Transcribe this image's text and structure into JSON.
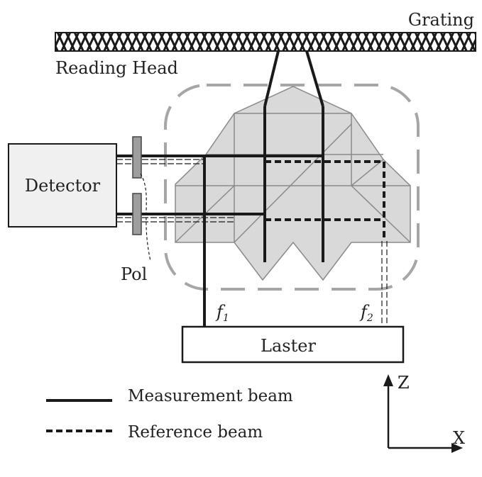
{
  "labels": {
    "grating": "Grating",
    "reading_head": "Reading Head",
    "detector": "Detector",
    "pol": "Pol",
    "laser": "Laster",
    "f1": "f",
    "f1_sub": "1",
    "f2": "f",
    "f2_sub": "2",
    "axis_z": "Z",
    "axis_x": "X"
  },
  "legend": [
    {
      "label": "Measurement beam",
      "style": "solid"
    },
    {
      "label": "Reference beam",
      "style": "dashed"
    }
  ],
  "colors": {
    "line": "#1a1a1a",
    "prism_fill": "#d9d9d9",
    "prism_edge": "#8a8a8a",
    "head_outline": "#a6a6a6"
  }
}
